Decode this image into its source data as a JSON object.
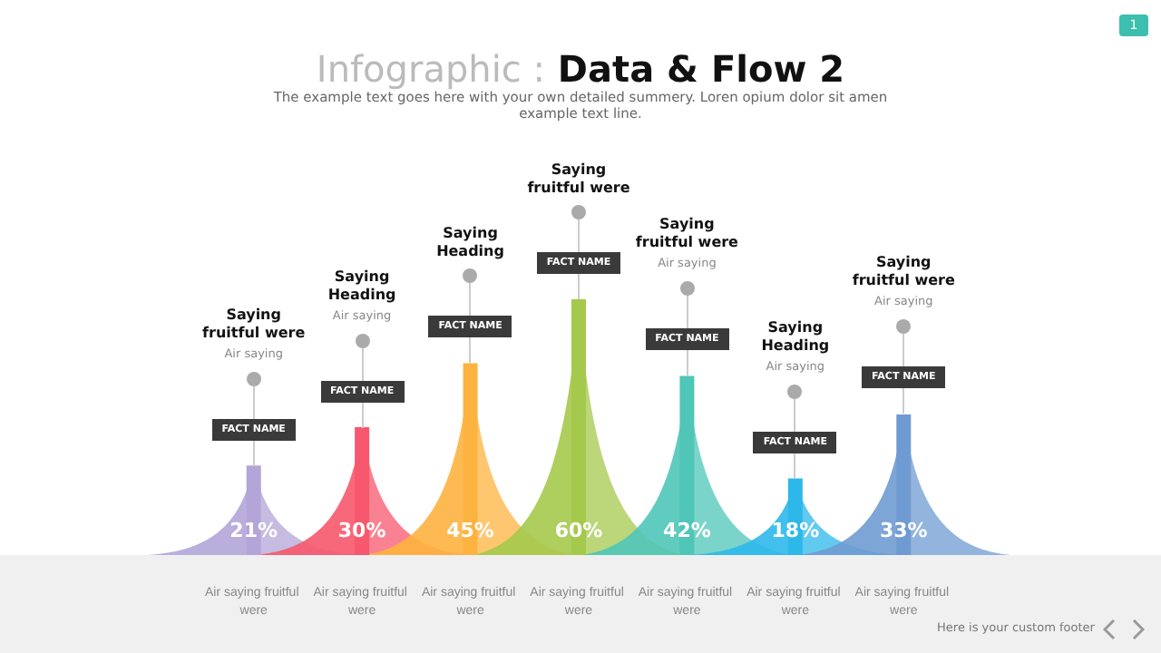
{
  "chart_data": {
    "type": "bar",
    "title": "Infographic : Data & Flow 2",
    "subtitle": "The example text goes here with your own detailed summery. Loren opium dolor sit amen example text line.",
    "categories": [
      "Air saying fruitful were",
      "Air saying fruitful were",
      "Air saying fruitful were",
      "Air saying fruitful were",
      "Air saying fruitful were",
      "Air saying fruitful were",
      "Air saying fruitful were"
    ],
    "values": [
      21,
      30,
      45,
      60,
      42,
      18,
      33
    ],
    "value_labels": [
      "21%",
      "30%",
      "45%",
      "60%",
      "42%",
      "18%",
      "33%"
    ],
    "colors": [
      "#b3a5d8",
      "#f7586d",
      "#fdb33f",
      "#a5c94c",
      "#4fc6b8",
      "#2db8ea",
      "#6f9bd2"
    ],
    "annotations": [
      "Here is your custom footer",
      "1",
      "Saying fruitful were",
      "Air saying",
      "FACT NAME",
      "Saying Heading",
      "Air saying",
      "FACT NAME",
      "Saying Heading",
      null,
      "FACT NAME",
      "Saying fruitful were",
      null,
      "FACT NAME",
      "Saying fruitful were",
      "Air saying",
      "FACT NAME",
      "Saying Heading",
      "Air saying",
      "FACT NAME",
      "Saying fruitful were",
      "Air saying",
      "FACT NAME"
    ]
  }
}
